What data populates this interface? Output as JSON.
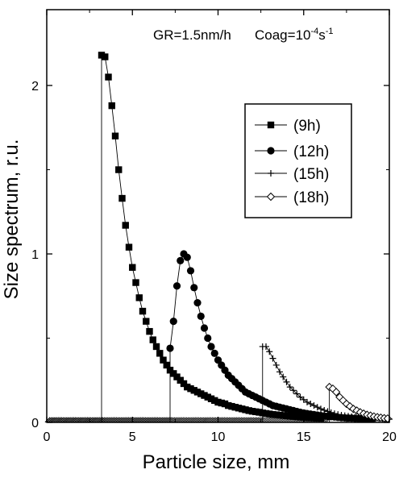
{
  "chart_data": {
    "type": "line",
    "annotation": {
      "gr": "GR=1.5nm/h",
      "coag_prefix": "Coag=10",
      "coag_exp": "-4",
      "coag_unit": "s",
      "coag_unit_exp": "-1"
    },
    "xlabel": "Particle size, mm",
    "ylabel": "Size spectrum, r.u.",
    "xlim": [
      0,
      20
    ],
    "ylim": [
      0,
      2.45
    ],
    "x_ticks": [
      0,
      5,
      10,
      15,
      20
    ],
    "y_ticks": [
      0,
      1,
      2
    ],
    "legend_position": "right-middle",
    "grid": false,
    "series": [
      {
        "name": "(9h)",
        "marker": "square",
        "base_y": 0.015,
        "baseline_end": 3.2,
        "x": [
          3.2,
          3.4,
          3.6,
          3.8,
          4.0,
          4.2,
          4.4,
          4.6,
          4.8,
          5.0,
          5.2,
          5.4,
          5.6,
          5.8,
          6.0,
          6.2,
          6.4,
          6.6,
          6.8,
          7.0,
          7.2,
          7.4,
          7.6,
          7.8,
          8.0,
          8.2,
          8.4,
          8.6,
          8.8,
          9.0,
          9.2,
          9.4,
          9.6,
          9.8,
          10.0,
          10.2,
          10.4,
          10.6,
          10.8,
          11.0,
          11.2,
          11.4,
          11.6,
          11.8,
          12.0,
          12.2,
          12.4,
          12.6,
          12.8,
          13.0,
          13.2,
          13.4,
          13.6,
          13.8,
          14.0,
          14.2,
          14.4,
          14.6,
          14.8,
          15.0,
          15.2,
          15.4,
          15.6,
          15.8,
          16.0
        ],
        "y": [
          2.18,
          2.17,
          2.05,
          1.88,
          1.7,
          1.5,
          1.33,
          1.17,
          1.04,
          0.92,
          0.83,
          0.74,
          0.66,
          0.6,
          0.54,
          0.49,
          0.45,
          0.41,
          0.37,
          0.34,
          0.31,
          0.29,
          0.27,
          0.25,
          0.23,
          0.21,
          0.2,
          0.19,
          0.18,
          0.17,
          0.16,
          0.15,
          0.14,
          0.13,
          0.12,
          0.115,
          0.11,
          0.1,
          0.095,
          0.09,
          0.085,
          0.08,
          0.075,
          0.07,
          0.066,
          0.063,
          0.06,
          0.056,
          0.053,
          0.05,
          0.047,
          0.045,
          0.043,
          0.041,
          0.039,
          0.037,
          0.035,
          0.033,
          0.031,
          0.03,
          0.028,
          0.027,
          0.026,
          0.025,
          0.024
        ]
      },
      {
        "name": "(12h)",
        "marker": "circle",
        "base_y": 0.015,
        "baseline_end": 7.2,
        "x": [
          7.2,
          7.4,
          7.6,
          7.8,
          8.0,
          8.2,
          8.4,
          8.6,
          8.8,
          9.0,
          9.2,
          9.4,
          9.6,
          9.8,
          10.0,
          10.2,
          10.4,
          10.6,
          10.8,
          11.0,
          11.2,
          11.4,
          11.6,
          11.8,
          12.0,
          12.2,
          12.4,
          12.6,
          12.8,
          13.0,
          13.2,
          13.4,
          13.6,
          13.8,
          14.0,
          14.2,
          14.4,
          14.6,
          14.8,
          15.0,
          15.2,
          15.4,
          15.6,
          15.8,
          16.0,
          16.2,
          16.4,
          16.6,
          16.8,
          17.0,
          17.2,
          17.4,
          17.6,
          17.8,
          18.0,
          18.2,
          18.4,
          18.6,
          18.8,
          19.0
        ],
        "y": [
          0.44,
          0.6,
          0.81,
          0.96,
          1.0,
          0.98,
          0.9,
          0.8,
          0.71,
          0.63,
          0.56,
          0.5,
          0.45,
          0.41,
          0.37,
          0.34,
          0.31,
          0.28,
          0.26,
          0.24,
          0.22,
          0.2,
          0.18,
          0.17,
          0.16,
          0.15,
          0.14,
          0.13,
          0.12,
          0.11,
          0.1,
          0.095,
          0.09,
          0.085,
          0.08,
          0.075,
          0.07,
          0.065,
          0.06,
          0.056,
          0.052,
          0.049,
          0.046,
          0.043,
          0.04,
          0.038,
          0.036,
          0.034,
          0.032,
          0.03,
          0.028,
          0.027,
          0.026,
          0.025,
          0.024,
          0.023,
          0.022,
          0.021,
          0.02,
          0.02
        ]
      },
      {
        "name": "(15h)",
        "marker": "plus",
        "base_y": 0.015,
        "baseline_end": 12.6,
        "x": [
          12.6,
          12.8,
          13.0,
          13.2,
          13.4,
          13.6,
          13.8,
          14.0,
          14.2,
          14.4,
          14.6,
          14.8,
          15.0,
          15.2,
          15.4,
          15.6,
          15.8,
          16.0,
          16.2,
          16.4,
          16.6,
          16.8,
          17.0,
          17.2,
          17.4,
          17.6,
          17.8,
          18.0,
          18.2,
          18.4,
          18.6,
          18.8,
          19.0,
          19.2,
          19.4,
          19.6,
          19.8,
          20.0
        ],
        "y": [
          0.45,
          0.45,
          0.42,
          0.38,
          0.34,
          0.3,
          0.27,
          0.24,
          0.21,
          0.19,
          0.17,
          0.15,
          0.135,
          0.12,
          0.11,
          0.1,
          0.09,
          0.08,
          0.072,
          0.065,
          0.058,
          0.052,
          0.047,
          0.043,
          0.04,
          0.037,
          0.034,
          0.031,
          0.029,
          0.027,
          0.025,
          0.024,
          0.023,
          0.022,
          0.021,
          0.02,
          0.02,
          0.019
        ]
      },
      {
        "name": "(18h)",
        "marker": "diamond",
        "base_y": 0.015,
        "baseline_end": 16.5,
        "x": [
          16.5,
          16.7,
          16.9,
          17.1,
          17.3,
          17.5,
          17.7,
          17.9,
          18.1,
          18.3,
          18.5,
          18.7,
          18.9,
          19.1,
          19.3,
          19.5,
          19.7,
          19.9
        ],
        "y": [
          0.21,
          0.2,
          0.18,
          0.15,
          0.13,
          0.11,
          0.095,
          0.08,
          0.07,
          0.06,
          0.052,
          0.045,
          0.04,
          0.035,
          0.031,
          0.028,
          0.025,
          0.023
        ]
      }
    ]
  }
}
